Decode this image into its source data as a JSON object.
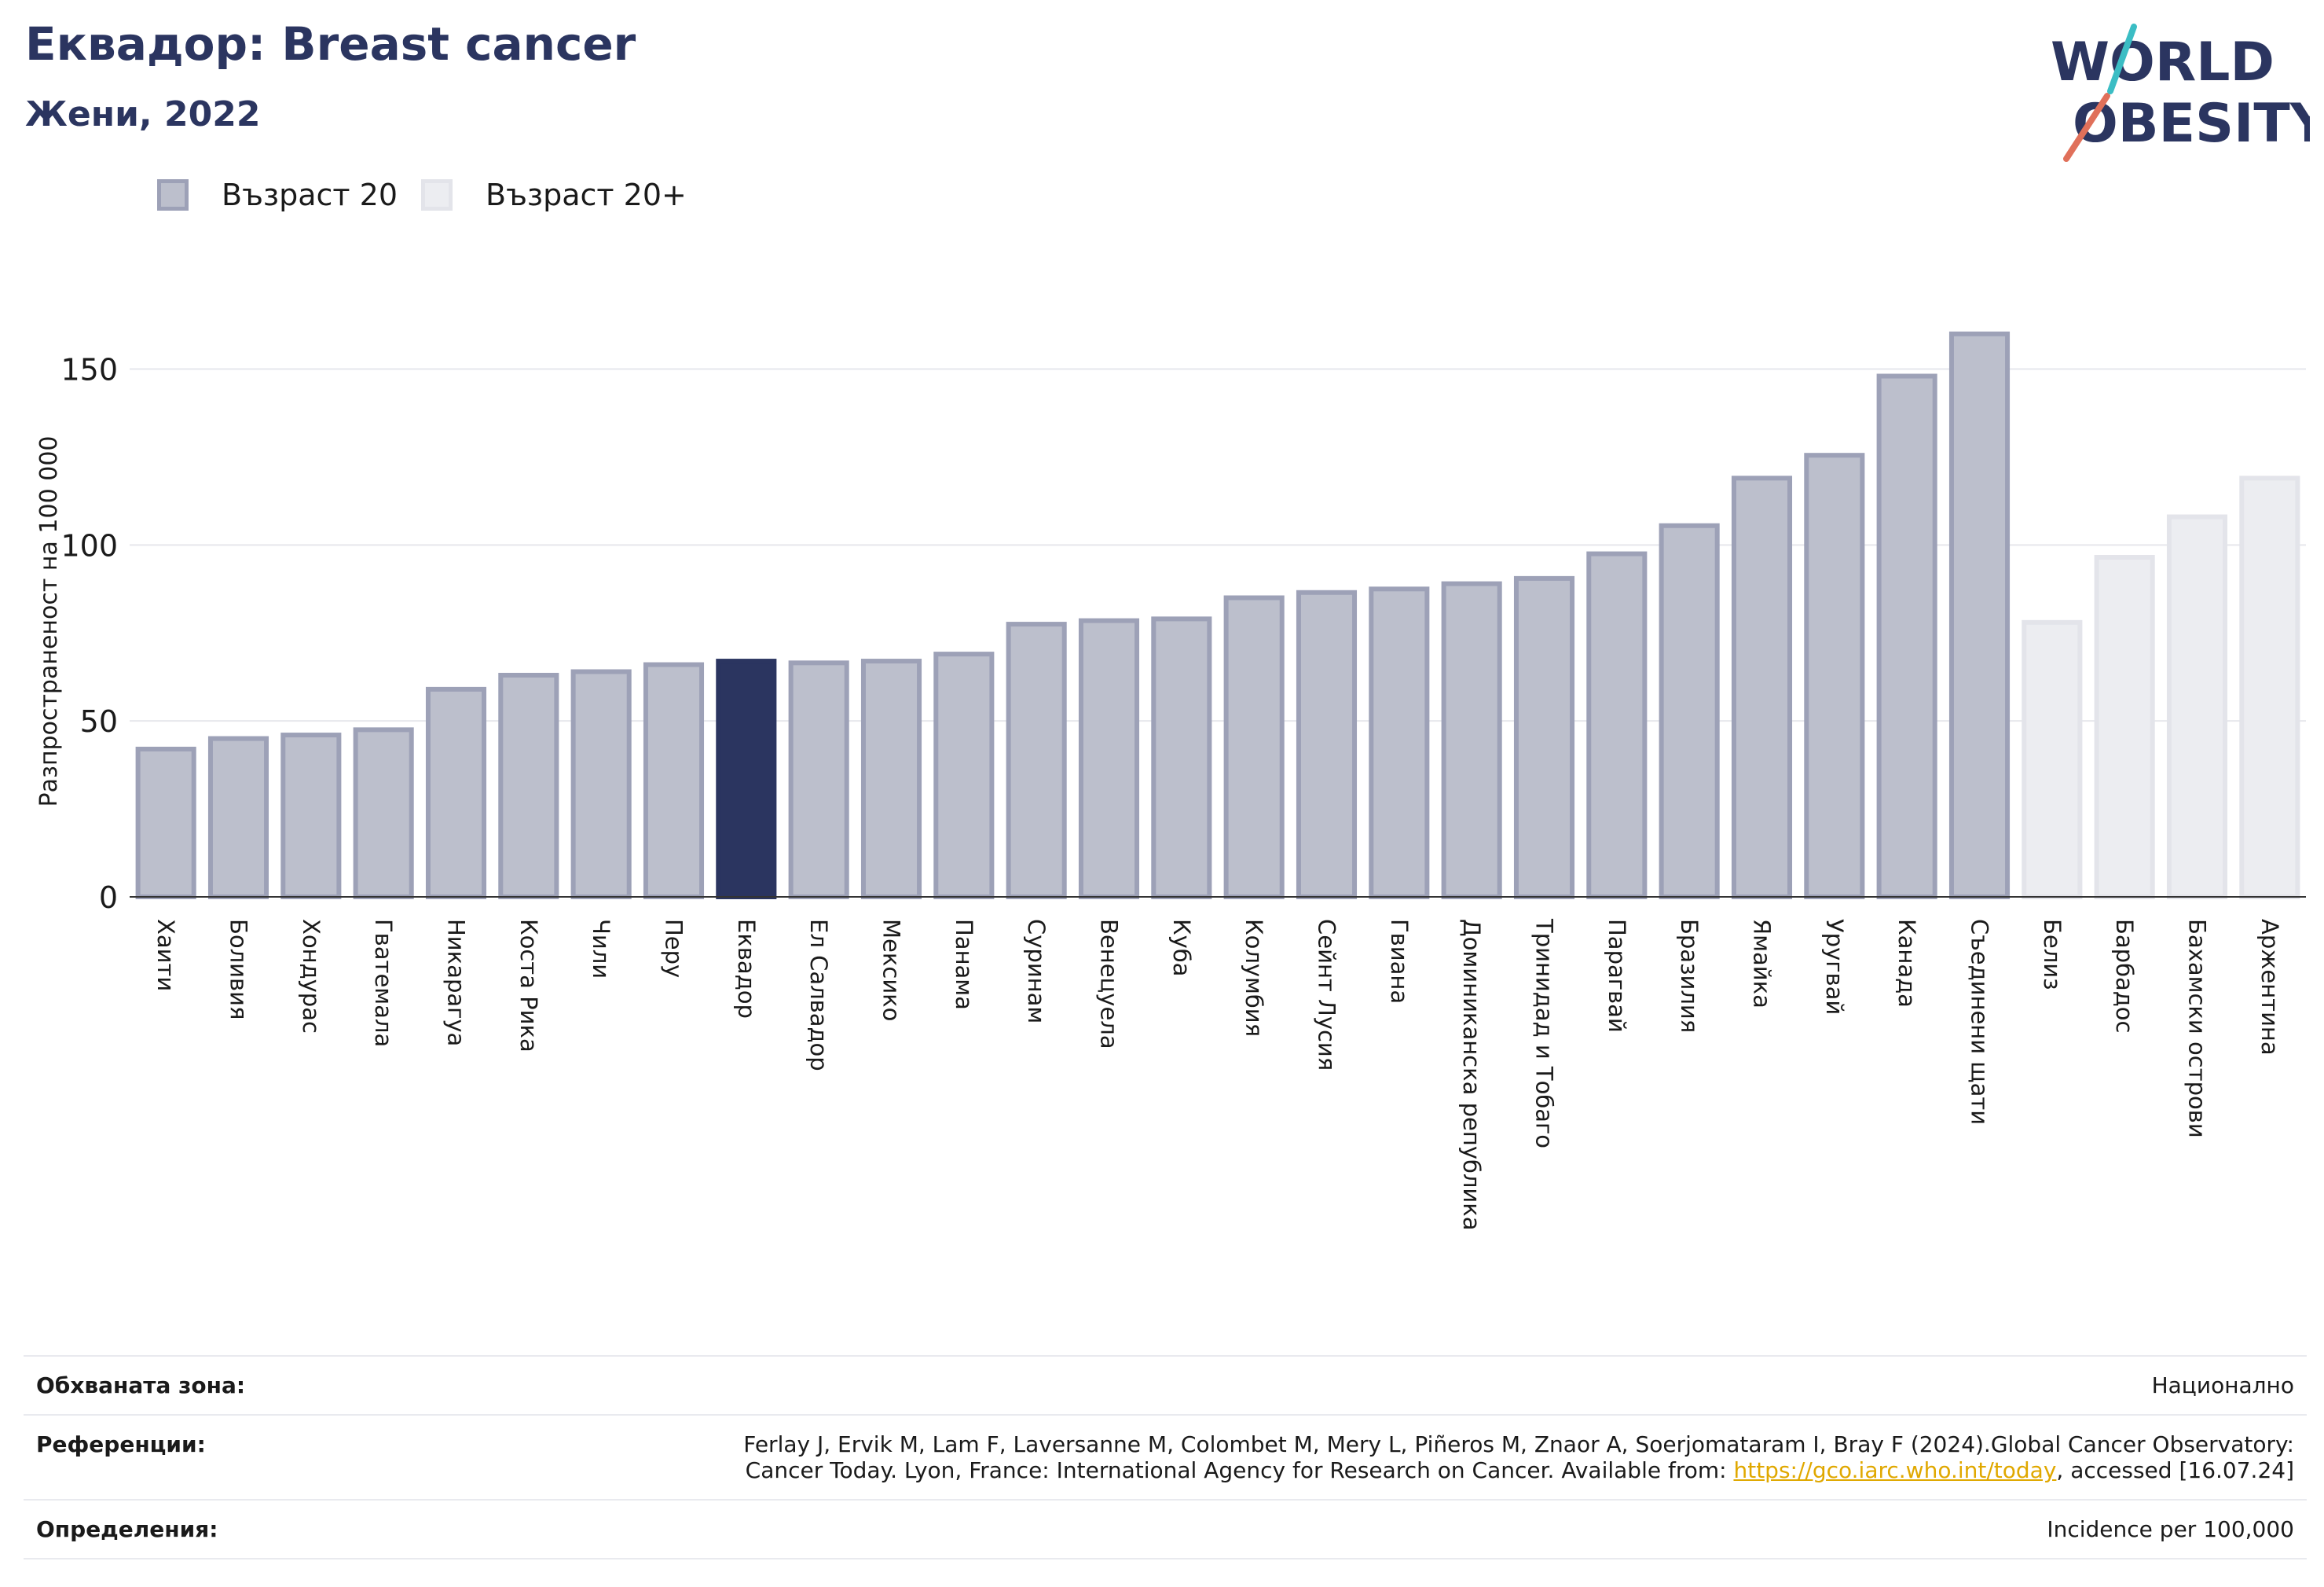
{
  "header": {
    "title": "Еквадор: Breast cancer",
    "subtitle": "Жени, 2022"
  },
  "logo": {
    "line1": "WORLD",
    "line2": "OBESITY",
    "accent": "#e0705a",
    "accent2": "#3bbdc4",
    "color": "#2b3560"
  },
  "legend": [
    {
      "label": "Възраст 20",
      "color": "#bcbfcc"
    },
    {
      "label": "Възраст 20+",
      "color": "#ecedf1"
    }
  ],
  "chart_data": {
    "type": "bar",
    "ylabel": "Разпространеност  на 100 000",
    "ylim": [
      0,
      170
    ],
    "yticks": [
      0,
      50,
      100,
      150
    ],
    "grid": true,
    "highlight": "Еквадор",
    "categories": [
      "Хаити",
      "Боливия",
      "Хондурас",
      "Гватемала",
      "Никарагуа",
      "Коста Рика",
      "Чили",
      "Перу",
      "Еквадор",
      "Ел Салвадор",
      "Мексико",
      "Панама",
      "Суринам",
      "Венецуела",
      "Куба",
      "Колумбия",
      "Сейнт Лусия",
      "Гвиана",
      "Доминиканска република",
      "Тринидад и Тобаго",
      "Парагвай",
      "Бразилия",
      "Ямайка",
      "Уругвай",
      "Канада",
      "Съединени щати",
      "Белиз",
      "Барбадос",
      "Бахамски острови",
      "Аржентина"
    ],
    "values": [
      42,
      45,
      46,
      47.5,
      59,
      63,
      64,
      66,
      67,
      66.5,
      67,
      69,
      77.5,
      78.5,
      79,
      85,
      86.5,
      87.5,
      89,
      90.5,
      97.5,
      105.5,
      119,
      125.5,
      148,
      160,
      78,
      96.5,
      108,
      119
    ],
    "groups": [
      "Възраст 20",
      "Възраст 20",
      "Възраст 20",
      "Възраст 20",
      "Възраст 20",
      "Възраст 20",
      "Възраст 20",
      "Възраст 20",
      "Възраст 20",
      "Възраст 20",
      "Възраст 20",
      "Възраст 20",
      "Възраст 20",
      "Възраст 20",
      "Възраст 20",
      "Възраст 20",
      "Възраст 20",
      "Възраст 20",
      "Възраст 20",
      "Възраст 20",
      "Възраст 20",
      "Възраст 20",
      "Възраст 20",
      "Възраст 20",
      "Възраст 20",
      "Възраст 20",
      "Възраст 20+",
      "Възраст 20+",
      "Възраст 20+",
      "Възраст 20+"
    ],
    "colors": {
      "age20_fill": "#bcbfcc",
      "age20_stroke": "#9da1b7",
      "age20p_fill": "#ecedf1",
      "age20p_stroke": "#e3e4ea",
      "highlight": "#2b3560"
    }
  },
  "footer": {
    "coverage_label": "Обхваната зона:",
    "coverage_value": "Национално",
    "references_label": "Референции:",
    "references_line1": "Ferlay J, Ervik M, Lam F, Laversanne M, Colombet M, Mery L, Piñeros M, Znaor A, Soerjomataram I, Bray F (2024).Global Cancer Observatory:",
    "references_line2_pre": "Cancer Today. Lyon, France: International Agency for Research on Cancer. Available from: ",
    "references_link": "https://gco.iarc.who.int/today",
    "references_line2_post": ", accessed [16.07.24]",
    "definitions_label": "Определения:",
    "definitions_value": "Incidence per 100,000"
  }
}
